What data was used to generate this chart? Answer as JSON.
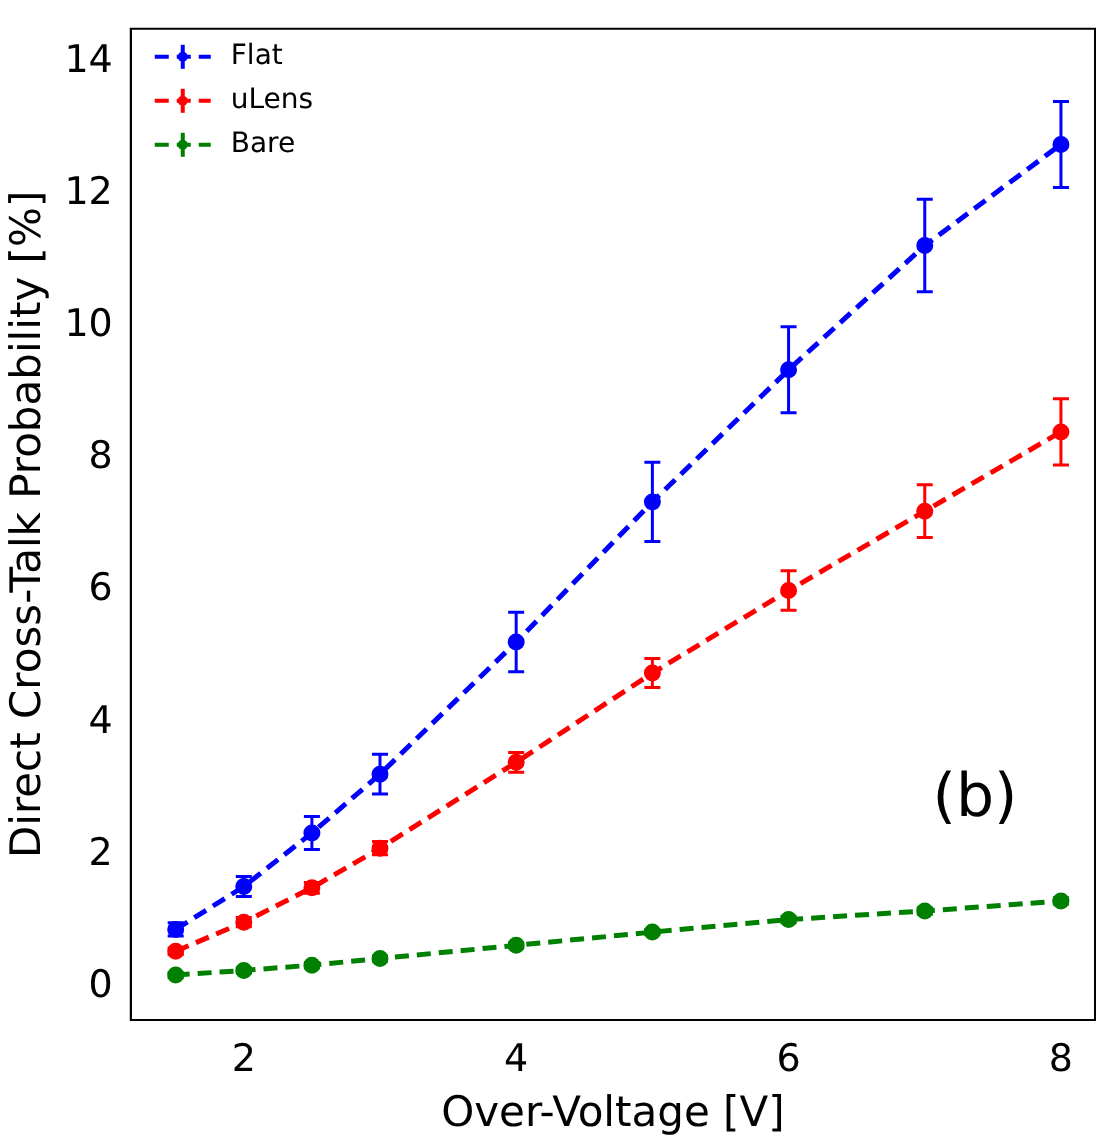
{
  "chart_data": {
    "type": "line",
    "xlabel": "Over-Voltage [V]",
    "ylabel": "Direct Cross-Talk Probability [%]",
    "x": [
      1.5,
      2,
      2.5,
      3,
      4,
      5,
      6,
      7,
      8
    ],
    "series": [
      {
        "name": "Flat",
        "color": "#0000ff",
        "values": [
          0.87,
          1.52,
          2.33,
          3.22,
          5.22,
          7.34,
          9.34,
          11.22,
          12.75
        ],
        "errors": [
          0.1,
          0.15,
          0.25,
          0.3,
          0.45,
          0.6,
          0.65,
          0.7,
          0.65
        ]
      },
      {
        "name": "uLens",
        "color": "#ff0000",
        "values": [
          0.54,
          0.98,
          1.5,
          2.1,
          3.4,
          4.75,
          6.0,
          7.2,
          8.4
        ],
        "errors": [
          0.05,
          0.07,
          0.08,
          0.1,
          0.15,
          0.22,
          0.3,
          0.4,
          0.5
        ]
      },
      {
        "name": "Bare",
        "color": "#008000",
        "values": [
          0.18,
          0.25,
          0.33,
          0.43,
          0.63,
          0.83,
          1.02,
          1.15,
          1.3
        ],
        "errors": [
          0.04,
          0.04,
          0.04,
          0.04,
          0.04,
          0.04,
          0.05,
          0.05,
          0.05
        ]
      }
    ],
    "xlim": [
      1.17,
      8.25
    ],
    "xticks": [
      2,
      4,
      6,
      8
    ],
    "ylim": [
      -0.5,
      14.5
    ],
    "yticks": [
      0,
      2,
      4,
      6,
      8,
      10,
      12,
      14
    ],
    "grid": false,
    "legend": "top left",
    "marker": "circle",
    "line_style": "dashed",
    "annotations": [
      "(b)"
    ]
  }
}
